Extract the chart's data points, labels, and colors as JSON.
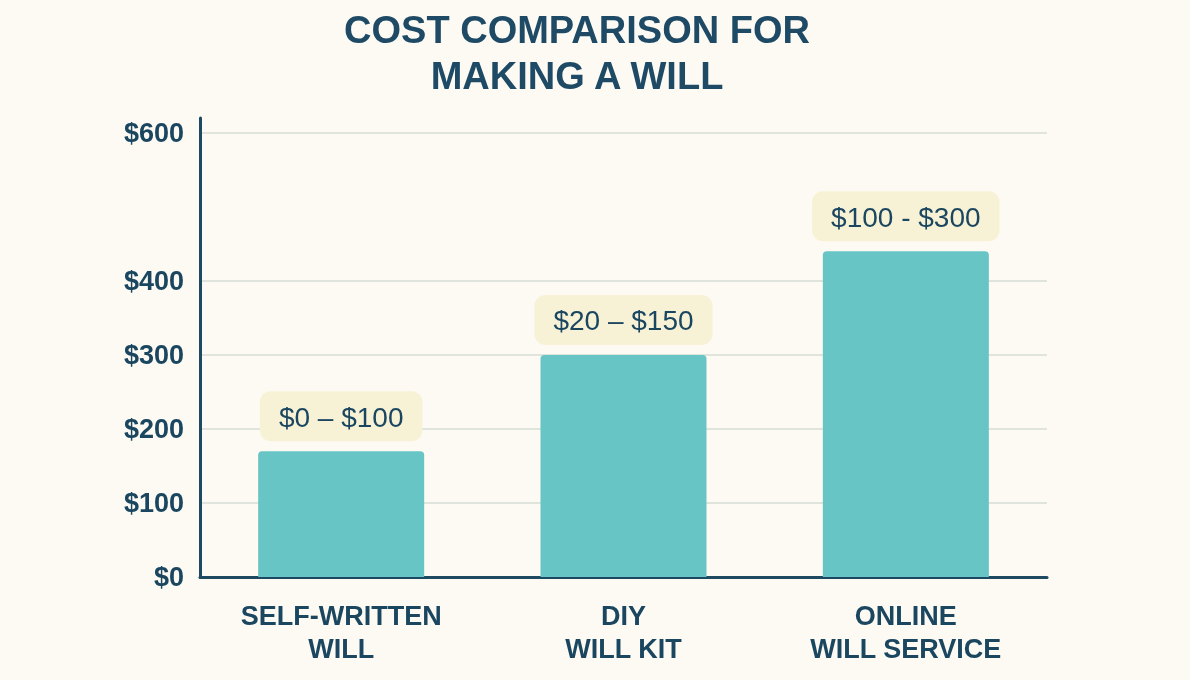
{
  "chart_data": {
    "type": "bar",
    "title": "COST COMPARISON FOR\nMAKING A WILL",
    "categories": [
      "SELF-WRITTEN\nWILL",
      "DIY\nWILL KIT",
      "ONLINE\nWILL SERVICE"
    ],
    "values": [
      170,
      300,
      440
    ],
    "color": "#67c5c5",
    "annotations": [
      {
        "text": "$0 – $100",
        "x": "SELF-WRITTEN\nWILL",
        "y": 170
      },
      {
        "text": "$20 – $150",
        "x": "DIY\nWILL KIT",
        "y": 300
      },
      {
        "text": "$100 - $300",
        "x": "ONLINE\nWILL SERVICE",
        "y": 440
      }
    ],
    "ylim": [
      0,
      620
    ],
    "yticks": [
      {
        "value": 0,
        "label": "$0"
      },
      {
        "value": 100,
        "label": "$100"
      },
      {
        "value": 200,
        "label": "$200"
      },
      {
        "value": 300,
        "label": "$300"
      },
      {
        "value": 400,
        "label": "$400"
      },
      {
        "value": 600,
        "label": "$600"
      }
    ],
    "grid": "y"
  }
}
